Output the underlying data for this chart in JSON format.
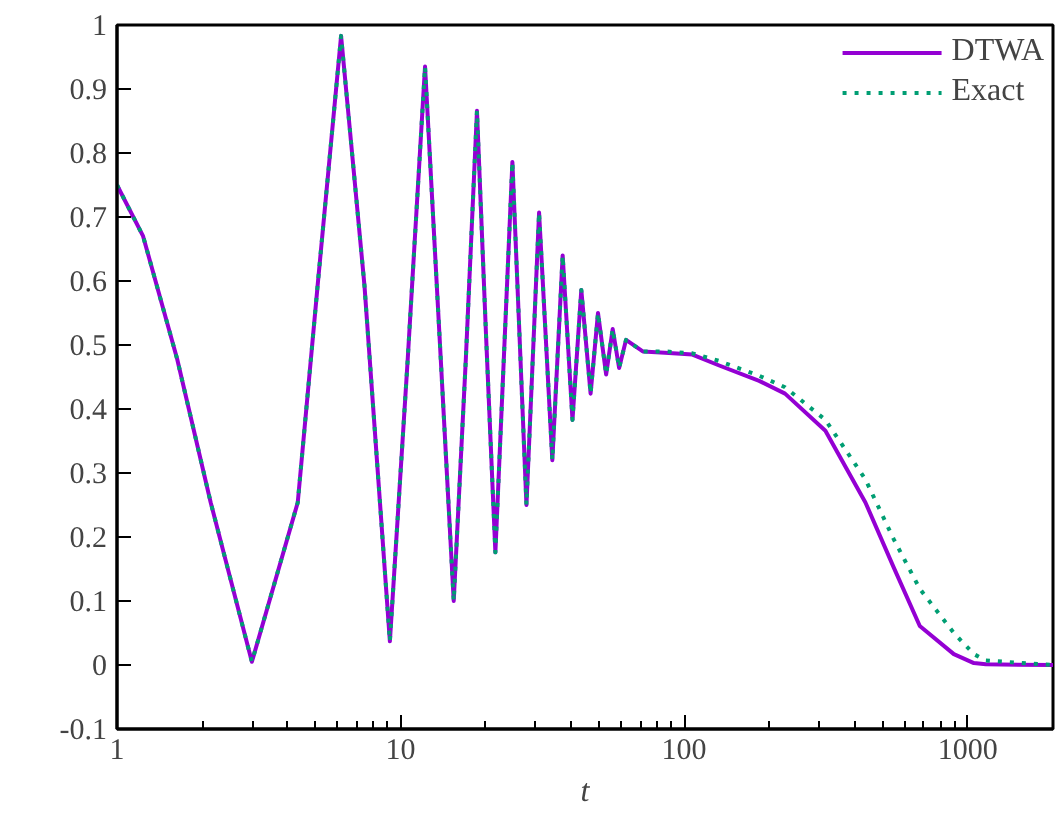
{
  "chart_data": {
    "type": "line",
    "xlabel": "t",
    "log": "x",
    "xlim": [
      1,
      2000
    ],
    "xticks": [
      1,
      10,
      100,
      1000
    ],
    "ylim": [
      -0.1,
      1
    ],
    "yticks": [
      -0.1,
      0,
      0.1,
      0.2,
      0.3,
      0.4,
      0.5,
      0.6,
      0.7,
      0.8,
      0.9,
      1
    ],
    "grid": false,
    "legend": "top right",
    "marker": "none",
    "x": [
      1,
      1.236,
      1.63,
      2.14,
      2.99,
      4.34,
      5.1,
      6.17,
      7.46,
      9.17,
      10.6,
      12.2,
      13.7,
      15.4,
      17,
      18.6,
      20,
      21.6,
      24.8,
      27.8,
      30.8,
      34.3,
      37.3,
      40.4,
      43.4,
      46.8,
      49.7,
      53.1,
      56,
      59,
      62.4,
      71.5,
      85.5,
      107,
      133,
      184,
      227,
      315,
      436,
      548,
      678,
      894,
      1052,
      1159,
      2000
    ],
    "series": [
      {
        "name": "DTWA",
        "color": "#9400d3",
        "line_style": "solid",
        "values": [
          0.75,
          0.67,
          0.478,
          0.254,
          0.005,
          0.254,
          0.593,
          0.983,
          0.593,
          0.037,
          0.478,
          0.935,
          0.52,
          0.1,
          0.48,
          0.866,
          0.52,
          0.176,
          0.786,
          0.25,
          0.707,
          0.32,
          0.64,
          0.383,
          0.586,
          0.424,
          0.55,
          0.454,
          0.525,
          0.464,
          0.508,
          0.49,
          0.488,
          0.485,
          0.468,
          0.444,
          0.424,
          0.366,
          0.254,
          0.153,
          0.061,
          0.017,
          0.003,
          0.001,
          0
        ]
      },
      {
        "name": "Exact",
        "color": "#009e73",
        "line_style": "dotted",
        "values": [
          0.75,
          0.67,
          0.478,
          0.254,
          0.005,
          0.254,
          0.593,
          0.983,
          0.593,
          0.037,
          0.478,
          0.935,
          0.52,
          0.1,
          0.48,
          0.866,
          0.52,
          0.176,
          0.786,
          0.25,
          0.707,
          0.32,
          0.64,
          0.383,
          0.586,
          0.424,
          0.55,
          0.454,
          0.525,
          0.464,
          0.508,
          0.49,
          0.49,
          0.487,
          0.475,
          0.452,
          0.434,
          0.383,
          0.29,
          0.197,
          0.119,
          0.05,
          0.017,
          0.007,
          0
        ]
      }
    ]
  }
}
